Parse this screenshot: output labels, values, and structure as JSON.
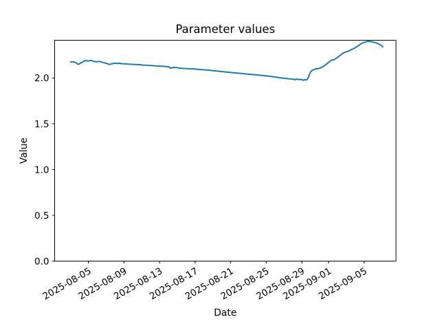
{
  "chart_data": {
    "type": "line",
    "title": "Parameter values",
    "xlabel": "Date",
    "ylabel": "Value",
    "legend": "none",
    "grid": false,
    "background_color": "#ffffff",
    "line_color": "#1f77b4",
    "spine_color": "#000000",
    "x_base_date": "2025-08-03",
    "x_tick_labels": [
      "2025-08-05",
      "2025-08-09",
      "2025-08-13",
      "2025-08-17",
      "2025-08-21",
      "2025-08-25",
      "2025-08-29",
      "2025-09-01",
      "2025-09-05"
    ],
    "x_tick_day_offsets": [
      2,
      6,
      10,
      14,
      18,
      22,
      26,
      29,
      33
    ],
    "x_tick_rotation_deg": 30,
    "y_tick_labels": [
      "0.0",
      "0.5",
      "1.0",
      "1.5",
      "2.0"
    ],
    "y_tick_values": [
      0.0,
      0.5,
      1.0,
      1.5,
      2.0
    ],
    "xlim_day_offsets": [
      -1.79,
      36.58
    ],
    "ylim": [
      0.0,
      2.412
    ],
    "series": [
      {
        "name": "parameter-values",
        "x_days": [
          0,
          0.3,
          0.6,
          0.85,
          1.1,
          1.4,
          1.7,
          2.0,
          2.3,
          2.6,
          2.9,
          3.2,
          3.5,
          3.8,
          4.1,
          4.35,
          4.6,
          4.9,
          5.2,
          5.5,
          5.8,
          6.1,
          6.4,
          6.7,
          7.0,
          7.3,
          7.6,
          7.9,
          8.2,
          8.5,
          8.8,
          9.1,
          9.4,
          9.7,
          10.0,
          10.3,
          10.6,
          11.0,
          11.25,
          11.5,
          11.8,
          12.1,
          12.4,
          12.7,
          13.0,
          13.3,
          13.6,
          13.9,
          14.2,
          14.5,
          14.8,
          15.1,
          15.4,
          15.7,
          16.0,
          16.3,
          16.6,
          16.9,
          17.2,
          17.5,
          17.8,
          18.1,
          18.4,
          18.7,
          19.0,
          19.3,
          19.6,
          19.9,
          20.2,
          20.5,
          20.8,
          21.1,
          21.4,
          21.7,
          22.0,
          22.3,
          22.6,
          22.9,
          23.2,
          23.5,
          23.8,
          24.1,
          24.4,
          24.7,
          25.0,
          25.2,
          25.4,
          25.6,
          25.8,
          26.0,
          26.15,
          26.3,
          26.45,
          26.6,
          26.75,
          26.9,
          27.05,
          27.2,
          27.35,
          27.5,
          27.65,
          27.8,
          27.95,
          28.1,
          28.25,
          28.4,
          28.55,
          28.7,
          28.85,
          29.0,
          29.15,
          29.3,
          29.45,
          29.6,
          29.75,
          29.9,
          30.05,
          30.2,
          30.35,
          30.5,
          30.65,
          30.8,
          30.95,
          31.1,
          31.25,
          31.4,
          31.55,
          31.7,
          31.85,
          32.0,
          32.15,
          32.3,
          32.45,
          32.6,
          32.75,
          32.9,
          33.05,
          33.2,
          33.35,
          33.5,
          33.65,
          33.8,
          33.95,
          34.1,
          34.25,
          34.4,
          34.55,
          34.7,
          34.85,
          35.0,
          35.1
        ],
        "values": [
          2.175,
          2.177,
          2.168,
          2.148,
          2.16,
          2.178,
          2.19,
          2.185,
          2.192,
          2.181,
          2.176,
          2.181,
          2.173,
          2.165,
          2.158,
          2.146,
          2.155,
          2.16,
          2.158,
          2.16,
          2.156,
          2.155,
          2.152,
          2.15,
          2.149,
          2.147,
          2.146,
          2.143,
          2.141,
          2.139,
          2.137,
          2.136,
          2.133,
          2.131,
          2.13,
          2.128,
          2.126,
          2.123,
          2.107,
          2.112,
          2.117,
          2.11,
          2.106,
          2.104,
          2.103,
          2.101,
          2.1,
          2.098,
          2.096,
          2.093,
          2.091,
          2.089,
          2.086,
          2.083,
          2.08,
          2.077,
          2.074,
          2.071,
          2.068,
          2.065,
          2.062,
          2.059,
          2.056,
          2.053,
          2.051,
          2.048,
          2.045,
          2.042,
          2.039,
          2.037,
          2.034,
          2.032,
          2.029,
          2.026,
          2.023,
          2.019,
          2.015,
          2.011,
          2.007,
          2.003,
          1.999,
          1.996,
          1.993,
          1.99,
          1.988,
          1.98,
          1.988,
          1.983,
          1.986,
          1.98,
          1.975,
          1.982,
          1.978,
          1.985,
          2.01,
          2.05,
          2.075,
          2.085,
          2.092,
          2.098,
          2.1,
          2.102,
          2.105,
          2.11,
          2.118,
          2.126,
          2.135,
          2.147,
          2.158,
          2.17,
          2.182,
          2.193,
          2.198,
          2.2,
          2.208,
          2.218,
          2.228,
          2.24,
          2.25,
          2.262,
          2.272,
          2.28,
          2.284,
          2.288,
          2.295,
          2.302,
          2.31,
          2.316,
          2.322,
          2.33,
          2.34,
          2.35,
          2.36,
          2.37,
          2.378,
          2.385,
          2.39,
          2.395,
          2.398,
          2.4,
          2.399,
          2.396,
          2.393,
          2.39,
          2.386,
          2.381,
          2.375,
          2.368,
          2.36,
          2.35,
          2.34
        ]
      }
    ]
  }
}
